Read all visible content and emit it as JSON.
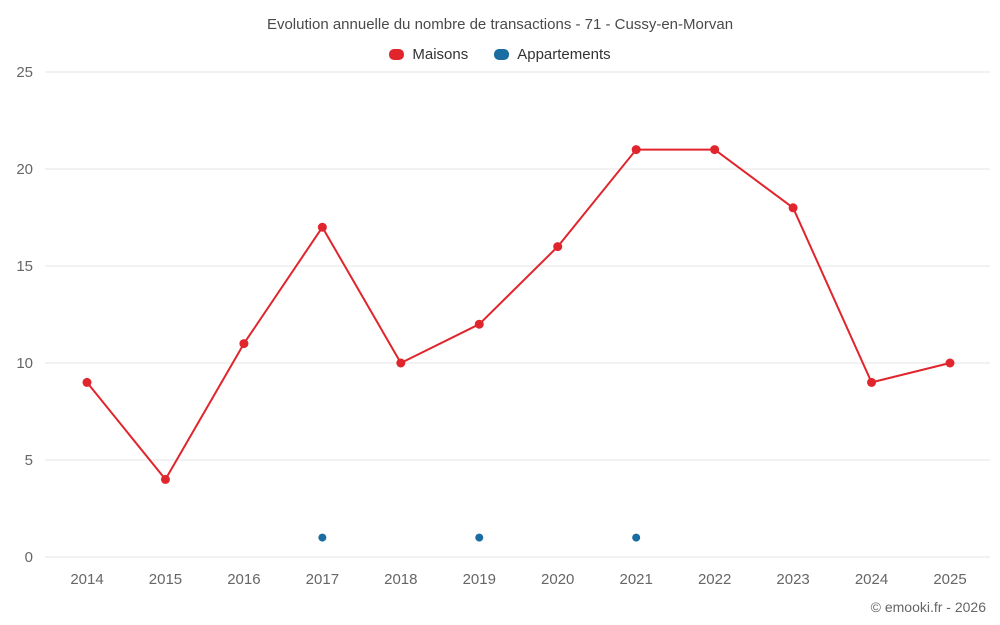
{
  "page": {
    "title": "Evolution annuelle du nombre de transactions - 71 - Cussy-en-Morvan",
    "footer": "© emooki.fr - 2026"
  },
  "legend": {
    "items": [
      {
        "label": "Maisons",
        "color": "#e0252c"
      },
      {
        "label": "Appartements",
        "color": "#1a6da1"
      }
    ]
  },
  "chart_data": {
    "type": "line",
    "title": "Evolution annuelle du nombre de transactions - 71 - Cussy-en-Morvan",
    "categories": [
      "2014",
      "2015",
      "2016",
      "2017",
      "2018",
      "2019",
      "2020",
      "2021",
      "2022",
      "2023",
      "2024",
      "2025"
    ],
    "series": [
      {
        "name": "Maisons",
        "color": "#e0252c",
        "show_line": true,
        "marker_radius": 4.5,
        "values": [
          9,
          4,
          11,
          17,
          10,
          12,
          16,
          21,
          21,
          18,
          9,
          10
        ]
      },
      {
        "name": "Appartements",
        "color": "#1a6da1",
        "show_line": false,
        "marker_radius": 4,
        "values": [
          null,
          null,
          null,
          1,
          null,
          1,
          null,
          1,
          null,
          null,
          null,
          null
        ]
      }
    ],
    "xlabel": "",
    "ylabel": "",
    "ylim": [
      0,
      25
    ],
    "yticks": [
      0,
      5,
      10,
      15,
      20,
      25
    ],
    "grid": true,
    "grid_color": "#e6e6e6",
    "legend_position": "top"
  }
}
